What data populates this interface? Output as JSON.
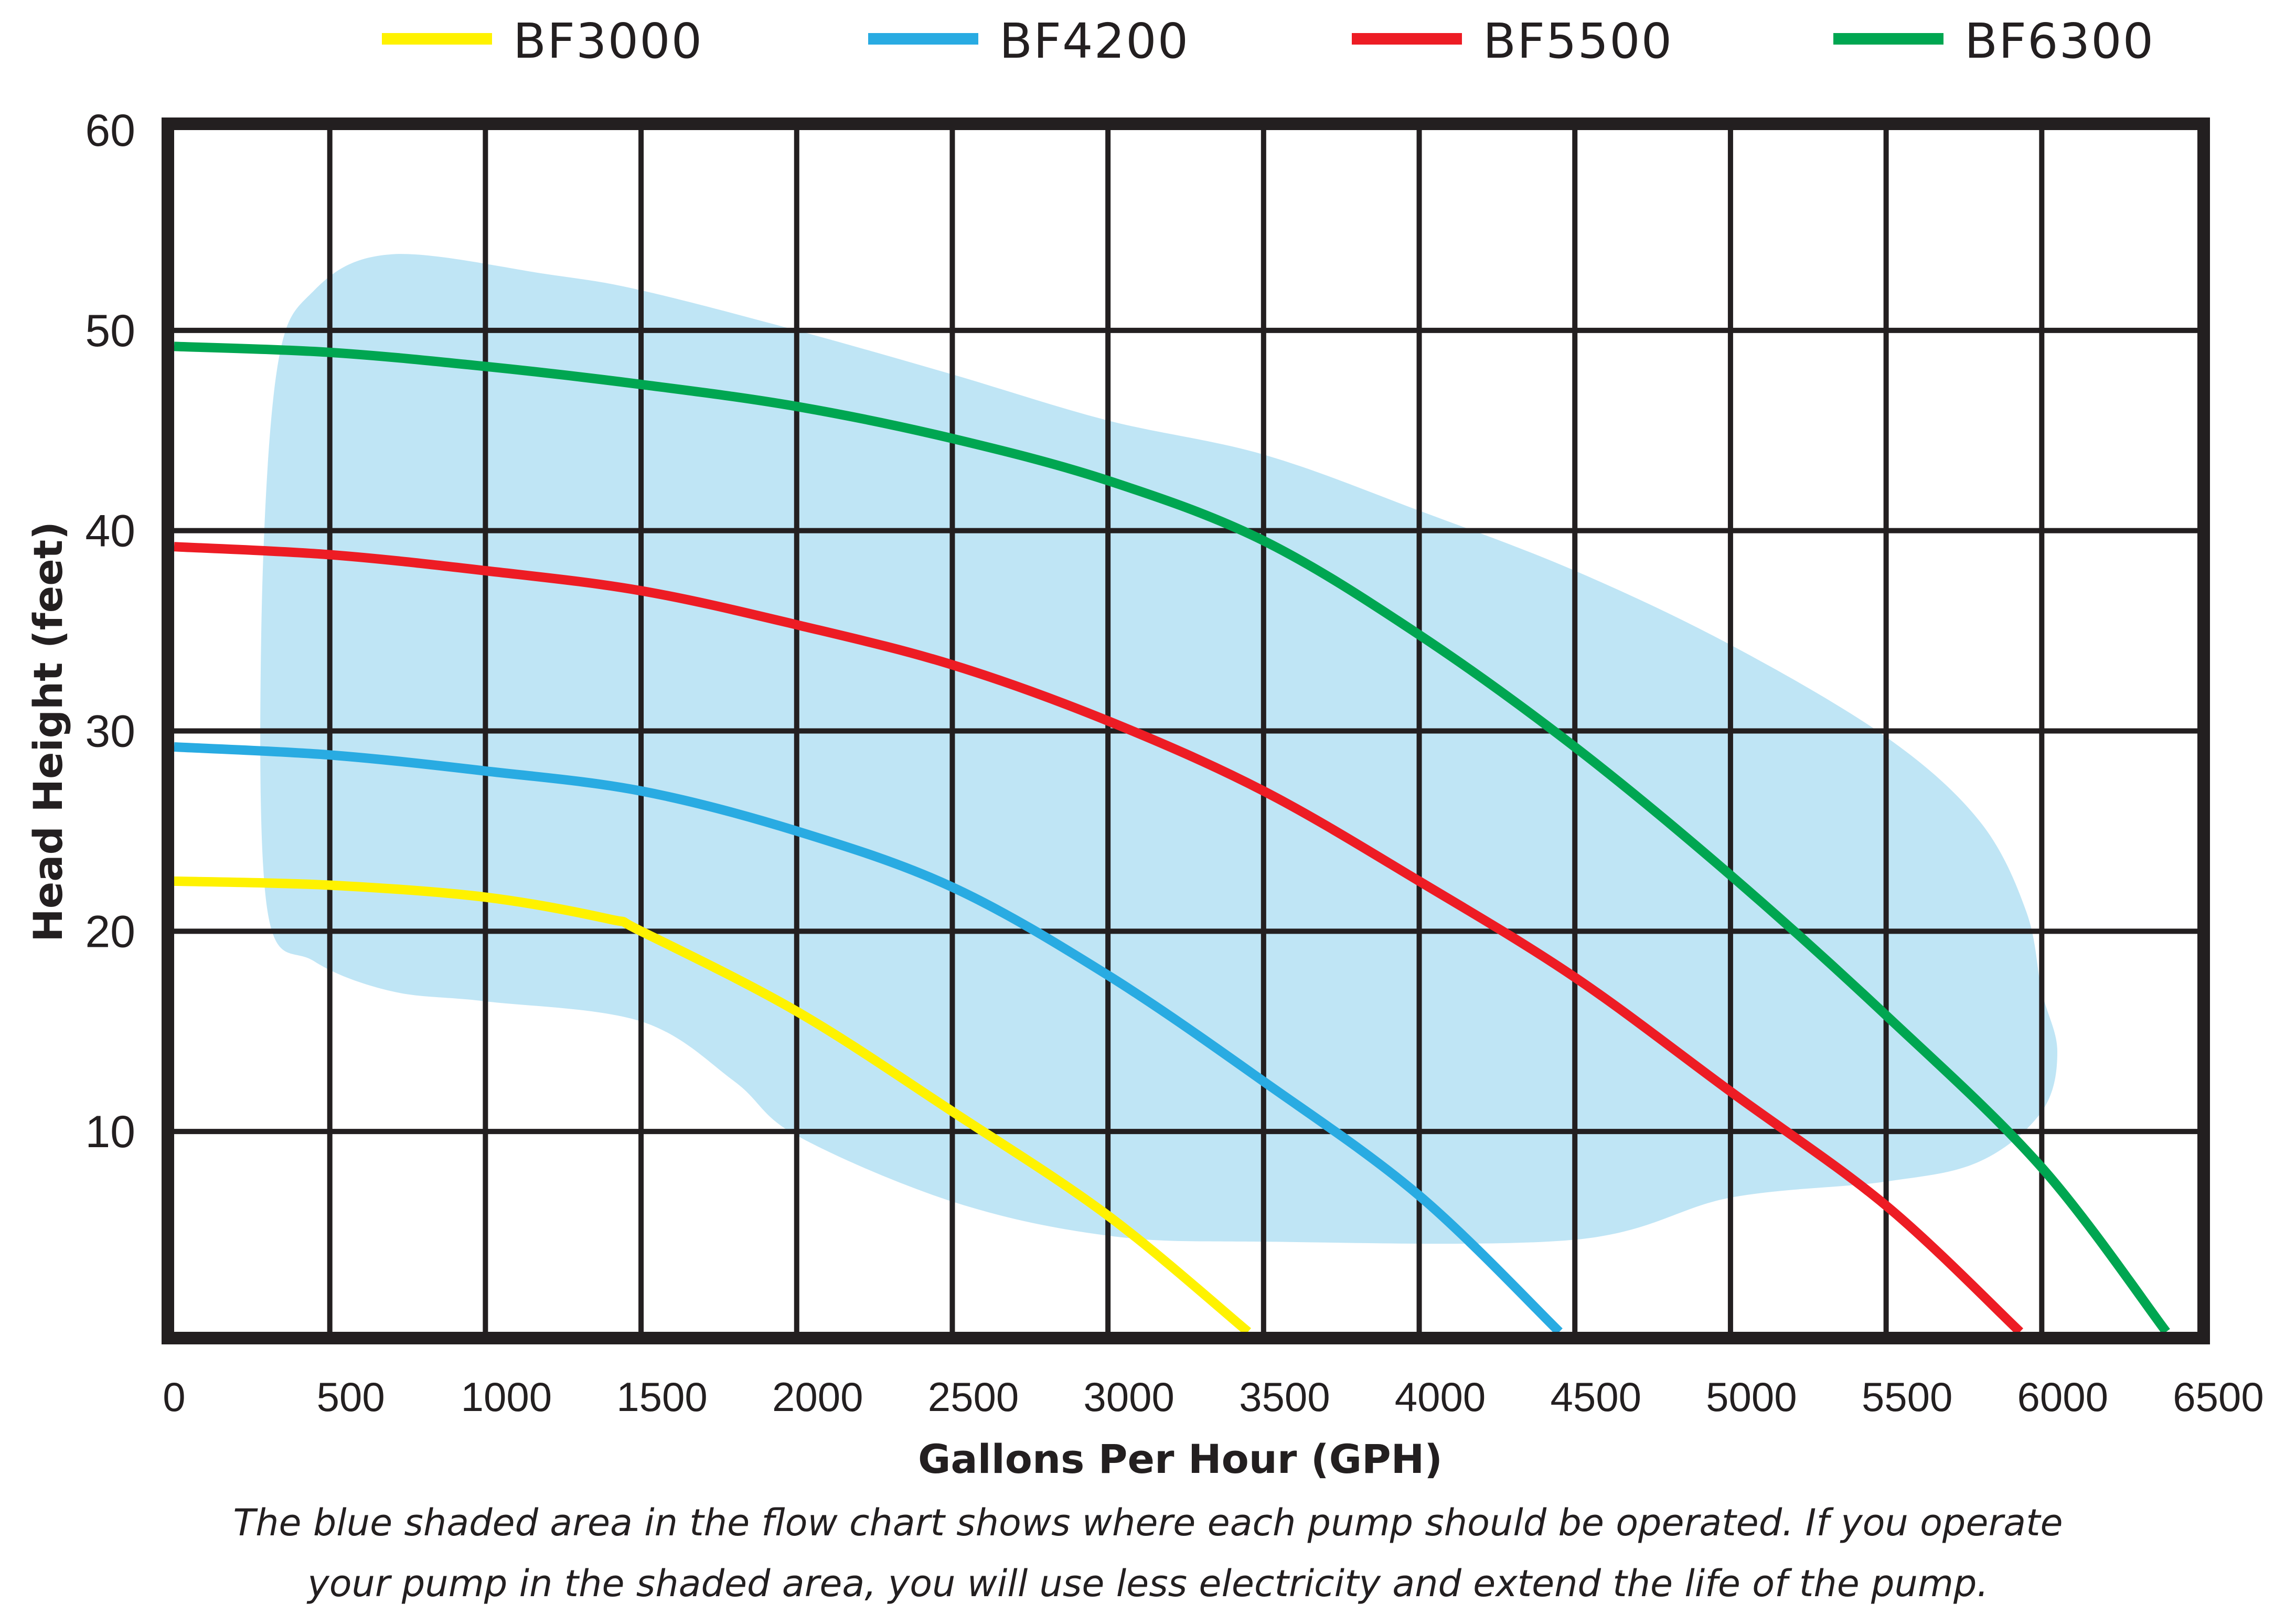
{
  "chart_data": {
    "type": "line",
    "title": "",
    "xlabel": "Gallons Per Hour (GPH)",
    "ylabel": "Head Height (feet)",
    "xlim": [
      0,
      6500
    ],
    "ylim": [
      0,
      60
    ],
    "x_ticks": [
      0,
      500,
      1000,
      1500,
      2000,
      2500,
      3000,
      3500,
      4000,
      4500,
      5000,
      5500,
      6000,
      6500
    ],
    "x_tick_labels": [
      "0",
      "500",
      "1000",
      "1500",
      "2000",
      "2500",
      "3000",
      "3500",
      "4000",
      "4500",
      "5000",
      "5500",
      "6000",
      "6500"
    ],
    "y_ticks": [
      10,
      20,
      30,
      40,
      50,
      60
    ],
    "y_tick_labels": [
      "10",
      "20",
      "30",
      "40",
      "50",
      "60"
    ],
    "grid": true,
    "legend_position": "top",
    "series": [
      {
        "name": "BF3000",
        "color": "#fff200",
        "points": [
          [
            0,
            22.5
          ],
          [
            500,
            22.3
          ],
          [
            1000,
            21.7
          ],
          [
            1400,
            20.6
          ],
          [
            1500,
            20.0
          ],
          [
            2000,
            16.0
          ],
          [
            2500,
            11.0
          ],
          [
            3000,
            5.8
          ],
          [
            3450,
            0
          ]
        ]
      },
      {
        "name": "BF4200",
        "color": "#29abe2",
        "points": [
          [
            0,
            29.2
          ],
          [
            500,
            28.8
          ],
          [
            1000,
            28.0
          ],
          [
            1500,
            27.0
          ],
          [
            2000,
            25.0
          ],
          [
            2500,
            22.2
          ],
          [
            3000,
            17.8
          ],
          [
            3500,
            12.5
          ],
          [
            4000,
            6.8
          ],
          [
            4450,
            0
          ]
        ]
      },
      {
        "name": "BF5500",
        "color": "#ed1c24",
        "points": [
          [
            0,
            39.2
          ],
          [
            500,
            38.8
          ],
          [
            1000,
            38.0
          ],
          [
            1500,
            37.0
          ],
          [
            2000,
            35.3
          ],
          [
            2500,
            33.3
          ],
          [
            3000,
            30.5
          ],
          [
            3500,
            27.0
          ],
          [
            4000,
            22.5
          ],
          [
            4500,
            17.7
          ],
          [
            5000,
            12.0
          ],
          [
            5500,
            6.3
          ],
          [
            5930,
            0
          ]
        ]
      },
      {
        "name": "BF6300",
        "color": "#00a651",
        "points": [
          [
            0,
            49.2
          ],
          [
            500,
            48.9
          ],
          [
            1000,
            48.2
          ],
          [
            1500,
            47.3
          ],
          [
            2000,
            46.2
          ],
          [
            2500,
            44.6
          ],
          [
            3000,
            42.5
          ],
          [
            3500,
            39.5
          ],
          [
            4000,
            34.8
          ],
          [
            4500,
            29.2
          ],
          [
            5000,
            22.8
          ],
          [
            5500,
            15.8
          ],
          [
            6000,
            8.2
          ],
          [
            6400,
            0
          ]
        ]
      }
    ],
    "shaded_region": {
      "name": "Recommended operating area",
      "color": "#bfe5f5",
      "outline": [
        [
          300,
          21
        ],
        [
          280,
          35
        ],
        [
          330,
          48
        ],
        [
          450,
          52
        ],
        [
          700,
          53.8
        ],
        [
          1200,
          52.8
        ],
        [
          1500,
          52
        ],
        [
          2000,
          50
        ],
        [
          2500,
          47.8
        ],
        [
          3000,
          45.5
        ],
        [
          3500,
          43.8
        ],
        [
          4000,
          41
        ],
        [
          4500,
          38
        ],
        [
          5000,
          34.3
        ],
        [
          5500,
          29.7
        ],
        [
          5800,
          25.5
        ],
        [
          5950,
          21
        ],
        [
          6000,
          17
        ],
        [
          6050,
          14
        ],
        [
          6000,
          11
        ],
        [
          5800,
          8.5
        ],
        [
          5500,
          7.5
        ],
        [
          5000,
          6.7
        ],
        [
          4500,
          4.6
        ],
        [
          3500,
          4.5
        ],
        [
          3000,
          4.8
        ],
        [
          2500,
          6.5
        ],
        [
          2000,
          9.8
        ],
        [
          1800,
          12.5
        ],
        [
          1500,
          15.5
        ],
        [
          1000,
          16.5
        ],
        [
          700,
          17
        ],
        [
          450,
          18.5
        ]
      ]
    },
    "caption": "The blue shaded area in the flow chart shows where each pump should be operated. If you operate your pump in the shaded area, you will use less electricity and extend the life of the pump."
  },
  "legend": [
    {
      "label": "BF3000",
      "color": "#fff200"
    },
    {
      "label": "BF4200",
      "color": "#29abe2"
    },
    {
      "label": "BF5500",
      "color": "#ed1c24"
    },
    {
      "label": "BF6300",
      "color": "#00a651"
    }
  ],
  "caption_lines": [
    "The blue shaded area in the flow chart shows where each pump should be operated. If you operate",
    "your pump in the shaded area, you will use less electricity and extend the life of the pump."
  ],
  "colors": {
    "grid": "#231f20",
    "shade": "#bfe5f5"
  }
}
